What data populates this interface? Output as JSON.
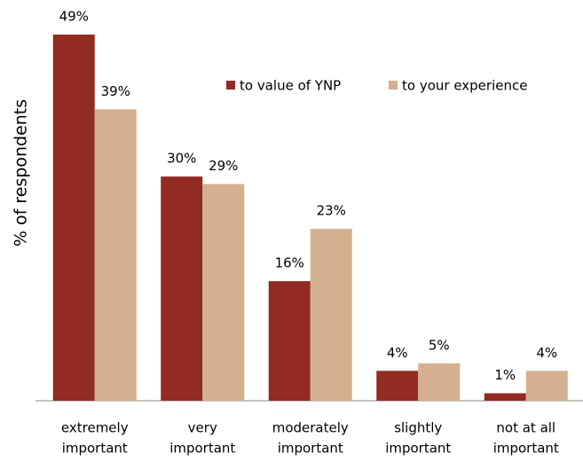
{
  "chart_data": {
    "type": "bar",
    "y_label": "% of respondents",
    "categories": [
      [
        "extremely",
        "important"
      ],
      [
        "very",
        "important"
      ],
      [
        "moderately",
        "important"
      ],
      [
        "slightly",
        "important"
      ],
      [
        "not at all",
        "important"
      ]
    ],
    "series": [
      {
        "name": "to value of YNP",
        "color": "#922b21",
        "values": [
          49,
          30,
          16,
          4,
          1
        ],
        "value_labels": [
          "49%",
          "30%",
          "16%",
          "4%",
          "1%"
        ]
      },
      {
        "name": "to your experience",
        "color": "#d4b090",
        "values": [
          39,
          29,
          23,
          5,
          4
        ],
        "value_labels": [
          "39%",
          "29%",
          "23%",
          "5%",
          "4%"
        ]
      }
    ],
    "legend": "top-right"
  }
}
